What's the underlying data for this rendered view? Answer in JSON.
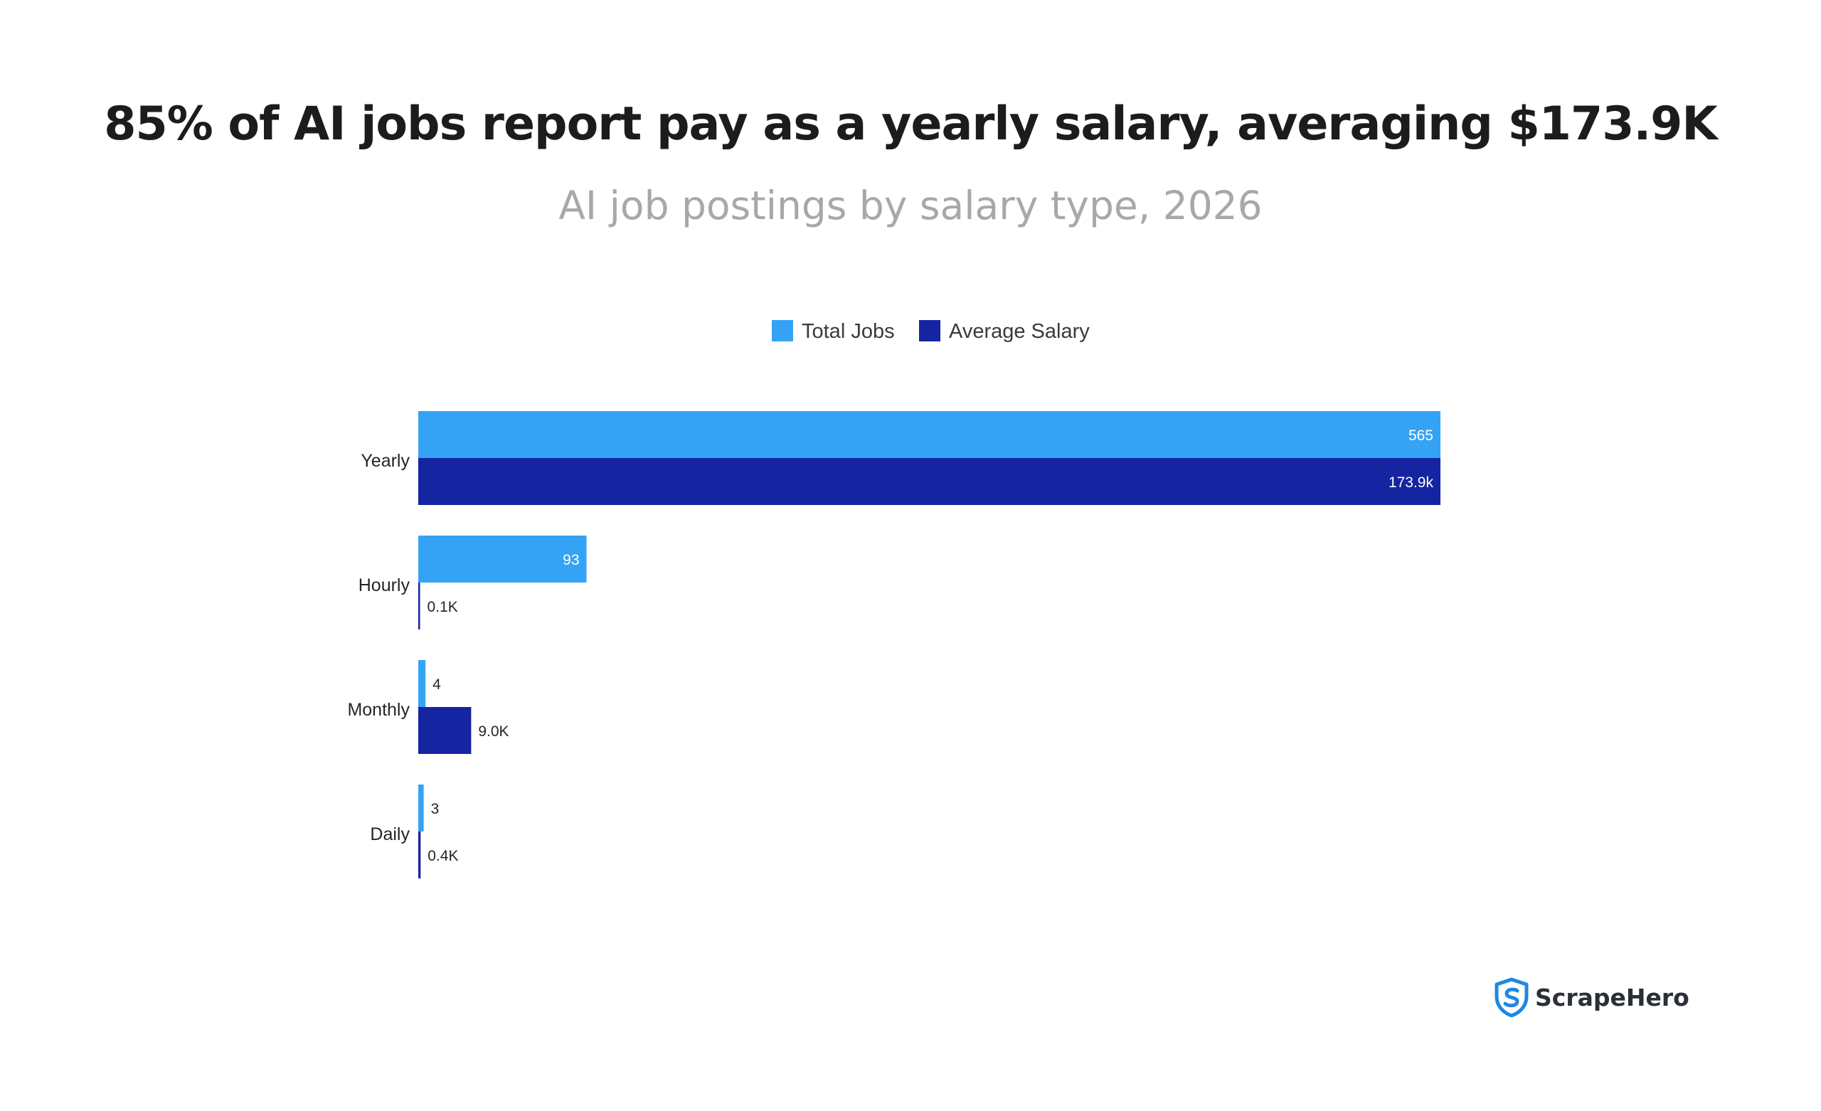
{
  "title": "85% of AI jobs report pay as a yearly salary, averaging $173.9K",
  "subtitle": "AI job postings by salary type, 2026",
  "brand": "ScrapeHero",
  "colors": {
    "total_jobs": "#35a3f5",
    "average_salary": "#1524a0",
    "label_dark": "#252525",
    "label_inside": "#ffffff"
  },
  "chart_data": {
    "type": "bar",
    "orientation": "horizontal",
    "legend_position": "top-center",
    "grid": false,
    "categories": [
      "Yearly",
      "Hourly",
      "Monthly",
      "Daily"
    ],
    "series": [
      {
        "name": "Total Jobs",
        "values": [
          565,
          93,
          4,
          3
        ],
        "labels": [
          "565",
          "93",
          "4",
          "3"
        ]
      },
      {
        "name": "Average Salary",
        "values": [
          173900,
          100,
          9000,
          400
        ],
        "labels": [
          "173.9k",
          "0.1K",
          "9.0K",
          "0.4K"
        ]
      }
    ]
  }
}
